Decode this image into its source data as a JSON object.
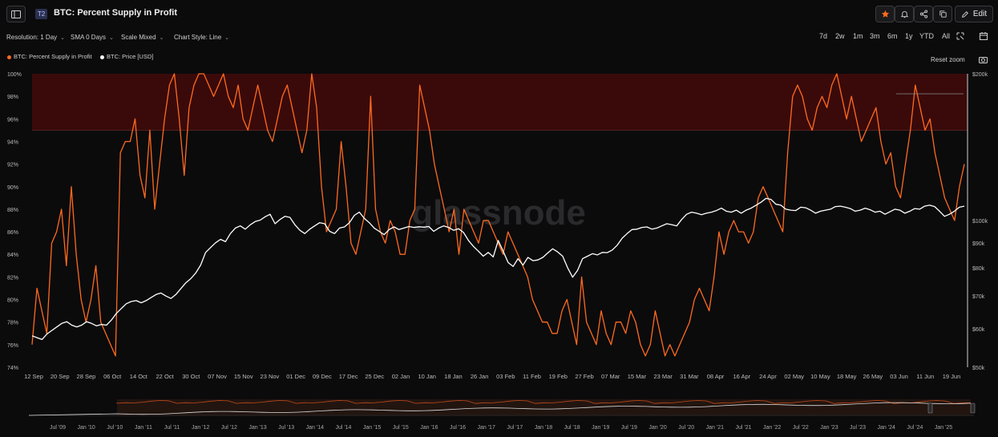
{
  "header": {
    "badge": "T2",
    "title": "BTC: Percent Supply in Profit",
    "edit_label": "Edit",
    "icons": [
      "sidebar-toggle-icon",
      "star-icon",
      "bell-icon",
      "share-icon",
      "copy-icon",
      "pencil-icon"
    ]
  },
  "toolbar": {
    "resolution": "Resolution: 1 Day",
    "sma": "SMA 0 Days",
    "scale": "Scale Mixed",
    "style": "Chart Style: Line",
    "ranges": [
      "7d",
      "2w",
      "1m",
      "3m",
      "6m",
      "1y",
      "YTD",
      "All"
    ],
    "reset_zoom": "Reset zoom"
  },
  "colors": {
    "supply": "#ff6a1f",
    "price": "#ffffff",
    "band": "#3a0a0a",
    "bg": "#0b0b0c"
  },
  "chart_data": {
    "type": "line",
    "watermark": "glassnode",
    "legend": [
      "BTC: Percent Supply in Profit",
      "BTC: Price [USD]"
    ],
    "yleft_ticks": [
      "100%",
      "98%",
      "96%",
      "94%",
      "92%",
      "90%",
      "88%",
      "86%",
      "84%",
      "82%",
      "80%",
      "78%",
      "76%",
      "74%"
    ],
    "yleft_range": [
      74,
      100
    ],
    "yright_ticks": [
      "$200k",
      "$100k",
      "$90k",
      "$80k",
      "$70k",
      "$60k",
      "$50k"
    ],
    "yright_range_log": [
      50000,
      200000
    ],
    "x_ticks": [
      "12 Sep",
      "20 Sep",
      "28 Sep",
      "06 Oct",
      "14 Oct",
      "22 Oct",
      "30 Oct",
      "07 Nov",
      "15 Nov",
      "23 Nov",
      "01 Dec",
      "09 Dec",
      "17 Dec",
      "25 Dec",
      "02 Jan",
      "10 Jan",
      "18 Jan",
      "26 Jan",
      "03 Feb",
      "11 Feb",
      "19 Feb",
      "27 Feb",
      "07 Mar",
      "15 Mar",
      "23 Mar",
      "31 Mar",
      "08 Apr",
      "16 Apr",
      "24 Apr",
      "02 May",
      "10 May",
      "18 May",
      "26 May",
      "03 Jun",
      "11 Jun",
      "19 Jun"
    ],
    "nav_ticks": [
      "Jul '09",
      "Jan '10",
      "Jul '10",
      "Jan '11",
      "Jul '11",
      "Jan '12",
      "Jul '12",
      "Jan '13",
      "Jul '13",
      "Jan '14",
      "Jul '14",
      "Jan '15",
      "Jul '15",
      "Jan '16",
      "Jul '16",
      "Jan '17",
      "Jul '17",
      "Jan '18",
      "Jul '18",
      "Jan '19",
      "Jul '19",
      "Jan '20",
      "Jul '20",
      "Jan '21",
      "Jul '21",
      "Jan '22",
      "Jul '22",
      "Jan '23",
      "Jul '23",
      "Jan '24",
      "Jul '24",
      "Jan '25"
    ],
    "highlight_band": [
      95,
      100
    ],
    "series": [
      {
        "name": "BTC: Percent Supply in Profit",
        "values": [
          76,
          81,
          79,
          77,
          85,
          86,
          88,
          83,
          90,
          84,
          80,
          78,
          80,
          83,
          78,
          77,
          76,
          75,
          93,
          94,
          94,
          96,
          91,
          89,
          95,
          88,
          92,
          96,
          99,
          100,
          96,
          91,
          97,
          99,
          100,
          100,
          99,
          98,
          99,
          100,
          98,
          97,
          99,
          96,
          95,
          97,
          99,
          97,
          95,
          94,
          96,
          98,
          99,
          97,
          95,
          93,
          95,
          100,
          97,
          90,
          86,
          87,
          88,
          94,
          90,
          85,
          84,
          86,
          88,
          98,
          88,
          86,
          85,
          87,
          86,
          84,
          84,
          87,
          88,
          99,
          97,
          95,
          92,
          90,
          88,
          86,
          88,
          84,
          88,
          87,
          86,
          85,
          87,
          87,
          86,
          85,
          84,
          86,
          85,
          84,
          83,
          82,
          80,
          79,
          78,
          78,
          77,
          77,
          79,
          80,
          78,
          76,
          82,
          78,
          77,
          76,
          79,
          77,
          76,
          78,
          78,
          77,
          79,
          78,
          76,
          75,
          76,
          79,
          77,
          75,
          76,
          75,
          76,
          77,
          78,
          80,
          81,
          80,
          79,
          82,
          86,
          84,
          86,
          87,
          86,
          86,
          85,
          86,
          89,
          90,
          89,
          88,
          87,
          86,
          93,
          98,
          99,
          98,
          96,
          95,
          97,
          98,
          97,
          99,
          100,
          98,
          96,
          98,
          96,
          94,
          95,
          96,
          97,
          94,
          92,
          93,
          90,
          89,
          92,
          95,
          99,
          97,
          95,
          96,
          93,
          91,
          89,
          88,
          87,
          90,
          92
        ]
      },
      {
        "name": "BTC: Price [USD]",
        "values": [
          58000,
          57500,
          57000,
          58500,
          59500,
          60500,
          61500,
          62000,
          61000,
          60500,
          61000,
          62000,
          61500,
          60800,
          61200,
          61000,
          62500,
          64500,
          66000,
          67500,
          68200,
          68500,
          67800,
          68500,
          69500,
          70500,
          71000,
          70000,
          69200,
          70500,
          72500,
          74500,
          76000,
          78000,
          81000,
          86000,
          88000,
          90000,
          91500,
          90500,
          94000,
          96500,
          97500,
          96000,
          98000,
          99500,
          100200,
          101800,
          103000,
          98500,
          100500,
          102000,
          101500,
          98000,
          95500,
          94000,
          96000,
          97500,
          99000,
          98500,
          95000,
          94000,
          96500,
          97000,
          99000,
          102500,
          104000,
          101000,
          99000,
          96500,
          95000,
          93500,
          95800,
          97000,
          95800,
          96500,
          97200,
          96800,
          97100,
          96900,
          97200,
          95000,
          96500,
          97500,
          96800,
          95500,
          96200,
          94500,
          91000,
          88500,
          86500,
          84500,
          86000,
          84200,
          91000,
          86500,
          82000,
          80500,
          83500,
          81000,
          84000,
          82700,
          83000,
          84000,
          85800,
          87500,
          86200,
          84500,
          80000,
          76500,
          79000,
          83500,
          84500,
          85500,
          85000,
          86000,
          85900,
          87000,
          89000,
          92000,
          94000,
          95800,
          96000,
          96800,
          97000,
          96000,
          96500,
          97500,
          98500,
          98000,
          97500,
          100500,
          103000,
          104000,
          103500,
          102800,
          103500,
          104000,
          104800,
          106000,
          104500,
          104000,
          105000,
          103500,
          105000,
          106000,
          107500,
          109000,
          111000,
          110500,
          108000,
          107500,
          105500,
          105000,
          104800,
          106500,
          106200,
          105000,
          103500,
          104500,
          105000,
          105500,
          106800,
          107000,
          106500,
          105800,
          104500,
          105000,
          106000,
          105200,
          104000,
          104500,
          103000,
          104200,
          105500,
          105000,
          103500,
          104500,
          105800,
          105500,
          107000,
          107500,
          106800,
          104500,
          102000,
          103000,
          104500,
          106500,
          107000
        ]
      }
    ]
  }
}
